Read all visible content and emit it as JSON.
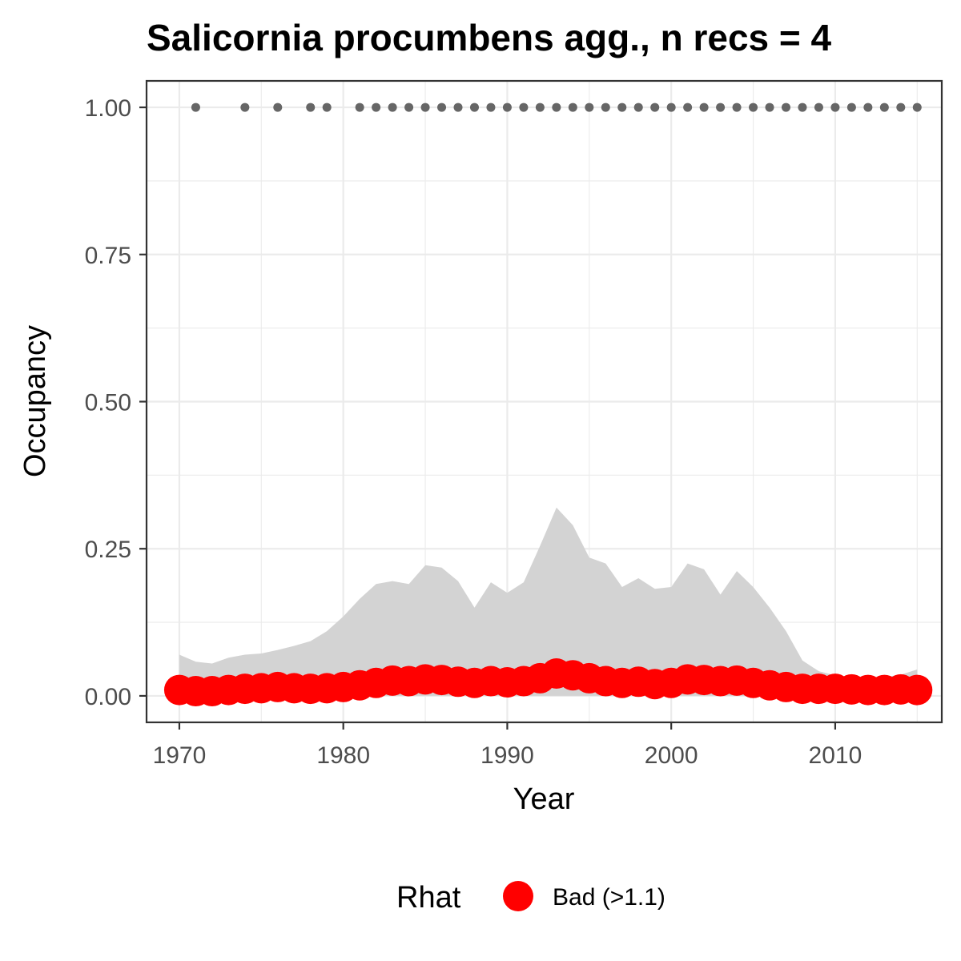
{
  "chart_data": {
    "type": "line",
    "title": "Salicornia procumbens agg., n recs = 4",
    "xlabel": "Year",
    "ylabel": "Occupancy",
    "xlim": [
      1968,
      2016.5
    ],
    "ylim": [
      -0.045,
      1.045
    ],
    "x_ticks": [
      1970,
      1980,
      1990,
      2000,
      2010
    ],
    "x_tick_labels": [
      "1970",
      "1980",
      "1990",
      "2000",
      "2010"
    ],
    "y_ticks": [
      0,
      0.25,
      0.5,
      0.75,
      1.0
    ],
    "y_tick_labels": [
      "0.00",
      "0.25",
      "0.50",
      "0.75",
      "1.00"
    ],
    "grid": true,
    "legend": {
      "title": "Rhat",
      "position": "bottom",
      "entries": [
        {
          "label": "Bad (>1.1)",
          "color": "#ff0000"
        }
      ]
    },
    "records": {
      "y": 1.0,
      "color": "#666666",
      "years": [
        1971,
        1974,
        1976,
        1978,
        1979,
        1981,
        1982,
        1983,
        1984,
        1985,
        1986,
        1987,
        1988,
        1989,
        1990,
        1991,
        1992,
        1993,
        1994,
        1995,
        1996,
        1997,
        1998,
        1999,
        2000,
        2001,
        2002,
        2003,
        2004,
        2005,
        2006,
        2007,
        2008,
        2009,
        2010,
        2011,
        2012,
        2013,
        2014,
        2015
      ]
    },
    "series": [
      {
        "color": "#ff0000",
        "x": [
          1970,
          1971,
          1972,
          1973,
          1974,
          1975,
          1976,
          1977,
          1978,
          1979,
          1980,
          1981,
          1982,
          1983,
          1984,
          1985,
          1986,
          1987,
          1988,
          1989,
          1990,
          1991,
          1992,
          1993,
          1994,
          1995,
          1996,
          1997,
          1998,
          1999,
          2000,
          2001,
          2002,
          2003,
          2004,
          2005,
          2006,
          2007,
          2008,
          2009,
          2010,
          2011,
          2012,
          2013,
          2014,
          2015
        ],
        "y": [
          0.01,
          0.008,
          0.008,
          0.01,
          0.012,
          0.013,
          0.015,
          0.013,
          0.012,
          0.013,
          0.015,
          0.018,
          0.022,
          0.026,
          0.025,
          0.028,
          0.027,
          0.024,
          0.022,
          0.025,
          0.023,
          0.025,
          0.03,
          0.038,
          0.035,
          0.03,
          0.025,
          0.022,
          0.024,
          0.02,
          0.022,
          0.028,
          0.027,
          0.025,
          0.026,
          0.022,
          0.018,
          0.015,
          0.012,
          0.012,
          0.012,
          0.011,
          0.01,
          0.01,
          0.011,
          0.01
        ]
      }
    ],
    "band": {
      "color": "#d3d3d3",
      "x": [
        1970,
        1971,
        1972,
        1973,
        1974,
        1975,
        1976,
        1977,
        1978,
        1979,
        1980,
        1981,
        1982,
        1983,
        1984,
        1985,
        1986,
        1987,
        1988,
        1989,
        1990,
        1991,
        1992,
        1993,
        1994,
        1995,
        1996,
        1997,
        1998,
        1999,
        2000,
        2001,
        2002,
        2003,
        2004,
        2005,
        2006,
        2007,
        2008,
        2009,
        2010,
        2011,
        2012,
        2013,
        2014,
        2015
      ],
      "upper": [
        0.07,
        0.058,
        0.055,
        0.065,
        0.07,
        0.072,
        0.078,
        0.085,
        0.093,
        0.11,
        0.135,
        0.165,
        0.19,
        0.195,
        0.19,
        0.222,
        0.218,
        0.195,
        0.15,
        0.193,
        0.175,
        0.193,
        0.255,
        0.32,
        0.29,
        0.235,
        0.225,
        0.185,
        0.2,
        0.182,
        0.185,
        0.225,
        0.215,
        0.172,
        0.212,
        0.185,
        0.15,
        0.11,
        0.06,
        0.042,
        0.035,
        0.03,
        0.03,
        0.032,
        0.036,
        0.045
      ],
      "lower": [
        0,
        0,
        0,
        0,
        0,
        0,
        0,
        0,
        0,
        0,
        0,
        0,
        0,
        0,
        0,
        0,
        0,
        0,
        0,
        0,
        0,
        0,
        0,
        0,
        0,
        0,
        0,
        0,
        0,
        0,
        0,
        0,
        0,
        0,
        0,
        0,
        0,
        0,
        0,
        0,
        0,
        0,
        0,
        0,
        0,
        0
      ]
    }
  }
}
